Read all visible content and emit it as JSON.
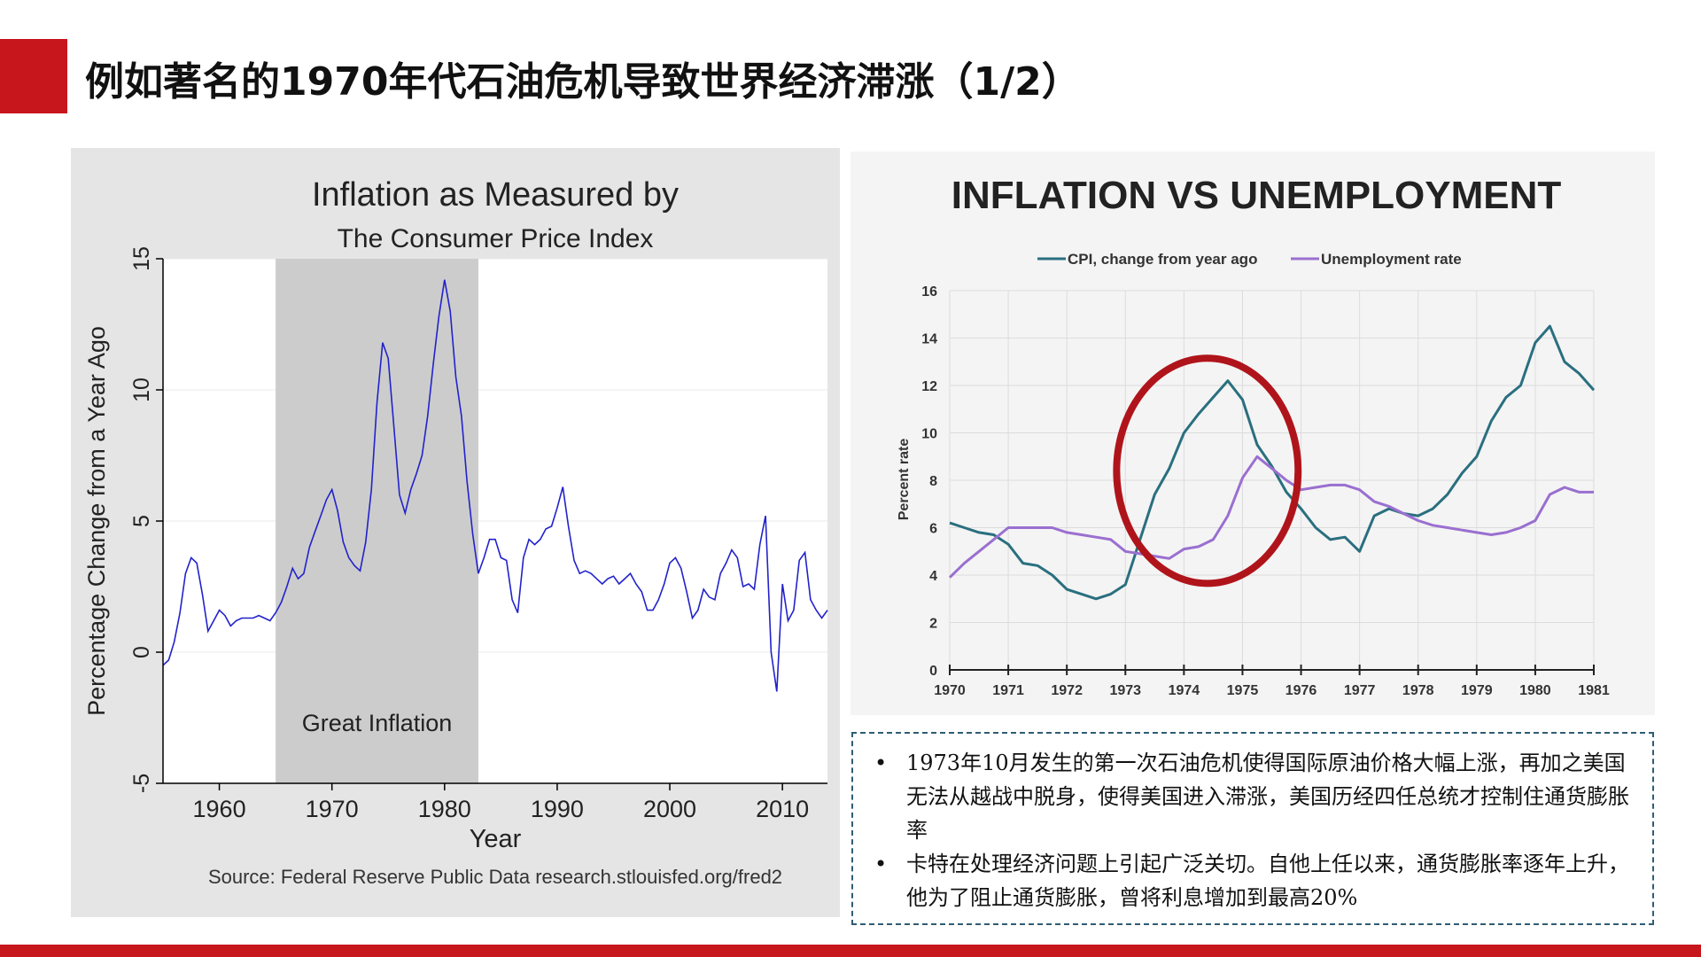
{
  "slide": {
    "title": "例如著名的1970年代石油危机导致世界经济滞涨（1/2）"
  },
  "colors": {
    "accent_red": "#c8161d",
    "left_line": "#2222cc",
    "shade": "#cccccc",
    "cpi": "#2a6f7f",
    "unemp": "#9a6fd0",
    "circle": "#b0141b"
  },
  "notes": [
    "1973年10月发生的第一次石油危机使得国际原油价格大幅上涨，再加之美国无法从越战中脱身，使得美国进入滞涨，美国历经四任总统才控制住通货膨胀率",
    "卡特在处理经济问题上引起广泛关切。自他上任以来，通货膨胀率逐年上升，他为了阻止通货膨胀，曾将利息增加到最高20%"
  ],
  "notes_bullet": "•",
  "chart_data": [
    {
      "type": "line",
      "title": "Inflation as Measured by",
      "subtitle": "The Consumer Price Index",
      "xlabel": "Year",
      "ylabel": "Percentage Change from a Year Ago",
      "source": "Source: Federal Reserve Public Data research.stlouisfed.org/fred2",
      "xlim": [
        1955,
        2014
      ],
      "ylim": [
        -5,
        15
      ],
      "x_ticks": [
        1960,
        1970,
        1980,
        1990,
        2000,
        2010
      ],
      "y_ticks": [
        -5,
        0,
        5,
        10,
        15
      ],
      "shaded_region": {
        "from": 1965,
        "to": 1983,
        "label": "Great Inflation"
      },
      "grid": "horizontal",
      "series": [
        {
          "x": [
            1955.0,
            1955.5,
            1956.0,
            1956.5,
            1957.0,
            1957.5,
            1958.0,
            1958.5,
            1959.0,
            1959.5,
            1960.0,
            1960.5,
            1961.0,
            1961.5,
            1962.0,
            1962.5,
            1963.0,
            1963.5,
            1964.0,
            1964.5,
            1965.0,
            1965.5,
            1966.0,
            1966.5,
            1967.0,
            1967.5,
            1968.0,
            1968.5,
            1969.0,
            1969.5,
            1970.0,
            1970.5,
            1971.0,
            1971.5,
            1972.0,
            1972.5,
            1973.0,
            1973.5,
            1974.0,
            1974.5,
            1975.0,
            1975.5,
            1976.0,
            1976.5,
            1977.0,
            1977.5,
            1978.0,
            1978.5,
            1979.0,
            1979.5,
            1980.0,
            1980.5,
            1981.0,
            1981.5,
            1982.0,
            1982.5,
            1983.0,
            1983.5,
            1984.0,
            1984.5,
            1985.0,
            1985.5,
            1986.0,
            1986.5,
            1987.0,
            1987.5,
            1988.0,
            1988.5,
            1989.0,
            1989.5,
            1990.0,
            1990.5,
            1991.0,
            1991.5,
            1992.0,
            1992.5,
            1993.0,
            1993.5,
            1994.0,
            1994.5,
            1995.0,
            1995.5,
            1996.0,
            1996.5,
            1997.0,
            1997.5,
            1998.0,
            1998.5,
            1999.0,
            1999.5,
            2000.0,
            2000.5,
            2001.0,
            2001.5,
            2002.0,
            2002.5,
            2003.0,
            2003.5,
            2004.0,
            2004.5,
            2005.0,
            2005.5,
            2006.0,
            2006.5,
            2007.0,
            2007.5,
            2008.0,
            2008.5,
            2009.0,
            2009.5,
            2010.0,
            2010.5,
            2011.0,
            2011.5,
            2012.0,
            2012.5,
            2013.0,
            2013.5,
            2014.0
          ],
          "y": [
            -0.5,
            -0.3,
            0.4,
            1.5,
            3.0,
            3.6,
            3.4,
            2.2,
            0.8,
            1.2,
            1.6,
            1.4,
            1.0,
            1.2,
            1.3,
            1.3,
            1.3,
            1.4,
            1.3,
            1.2,
            1.5,
            1.9,
            2.5,
            3.2,
            2.8,
            3.0,
            4.0,
            4.6,
            5.2,
            5.8,
            6.2,
            5.4,
            4.2,
            3.6,
            3.3,
            3.1,
            4.2,
            6.2,
            9.5,
            11.8,
            11.2,
            8.6,
            6.0,
            5.3,
            6.2,
            6.8,
            7.5,
            9.0,
            11.0,
            12.8,
            14.2,
            13.0,
            10.5,
            9.0,
            6.5,
            4.5,
            3.0,
            3.6,
            4.3,
            4.3,
            3.6,
            3.5,
            2.0,
            1.5,
            3.6,
            4.3,
            4.1,
            4.3,
            4.7,
            4.8,
            5.5,
            6.3,
            4.8,
            3.5,
            3.0,
            3.1,
            3.0,
            2.8,
            2.6,
            2.8,
            2.9,
            2.6,
            2.8,
            3.0,
            2.6,
            2.3,
            1.6,
            1.6,
            2.0,
            2.6,
            3.4,
            3.6,
            3.2,
            2.3,
            1.3,
            1.6,
            2.4,
            2.1,
            2.0,
            3.0,
            3.4,
            3.9,
            3.6,
            2.5,
            2.6,
            2.4,
            4.1,
            5.2,
            0.0,
            -1.5,
            2.6,
            1.2,
            1.6,
            3.5,
            3.8,
            2.0,
            1.6,
            1.3,
            1.6
          ]
        }
      ]
    },
    {
      "type": "line",
      "title": "INFLATION VS UNEMPLOYMENT",
      "ylabel": "Percent rate",
      "xlim": [
        1970,
        1981
      ],
      "ylim": [
        0,
        16
      ],
      "x_ticks": [
        1970,
        1971,
        1972,
        1973,
        1974,
        1975,
        1976,
        1977,
        1978,
        1979,
        1980,
        1981
      ],
      "y_ticks": [
        0,
        2,
        4,
        6,
        8,
        10,
        12,
        14,
        16
      ],
      "legend_position": "top",
      "grid": "both",
      "x": [
        1970.0,
        1970.25,
        1970.5,
        1970.75,
        1971.0,
        1971.25,
        1971.5,
        1971.75,
        1972.0,
        1972.25,
        1972.5,
        1972.75,
        1973.0,
        1973.25,
        1973.5,
        1973.75,
        1974.0,
        1974.25,
        1974.5,
        1974.75,
        1975.0,
        1975.25,
        1975.5,
        1975.75,
        1976.0,
        1976.25,
        1976.5,
        1976.75,
        1977.0,
        1977.25,
        1977.5,
        1977.75,
        1978.0,
        1978.25,
        1978.5,
        1978.75,
        1979.0,
        1979.25,
        1979.5,
        1979.75,
        1980.0,
        1980.25,
        1980.5,
        1980.75,
        1981.0
      ],
      "series": [
        {
          "name": "CPI, change from year ago",
          "values": [
            6.2,
            6.0,
            5.8,
            5.7,
            5.3,
            4.5,
            4.4,
            4.0,
            3.4,
            3.2,
            3.0,
            3.2,
            3.6,
            5.5,
            7.4,
            8.5,
            10.0,
            10.8,
            11.5,
            12.2,
            11.4,
            9.5,
            8.6,
            7.5,
            6.8,
            6.0,
            5.5,
            5.6,
            5.0,
            6.5,
            6.8,
            6.6,
            6.5,
            6.8,
            7.4,
            8.3,
            9.0,
            10.5,
            11.5,
            12.0,
            13.8,
            14.5,
            13.0,
            12.5,
            11.8
          ]
        },
        {
          "name": "Unemployment rate",
          "values": [
            3.9,
            4.5,
            5.0,
            5.5,
            6.0,
            6.0,
            6.0,
            6.0,
            5.8,
            5.7,
            5.6,
            5.5,
            5.0,
            4.9,
            4.8,
            4.7,
            5.1,
            5.2,
            5.5,
            6.5,
            8.1,
            9.0,
            8.5,
            8.0,
            7.6,
            7.7,
            7.8,
            7.8,
            7.6,
            7.1,
            6.9,
            6.6,
            6.3,
            6.1,
            6.0,
            5.9,
            5.8,
            5.7,
            5.8,
            6.0,
            6.3,
            7.4,
            7.7,
            7.5,
            7.5
          ]
        }
      ],
      "annotation": {
        "type": "ellipse",
        "center_x": 1974.4,
        "center_y": 8.4,
        "rx_years": 1.55,
        "ry_percent": 4.75
      }
    }
  ]
}
